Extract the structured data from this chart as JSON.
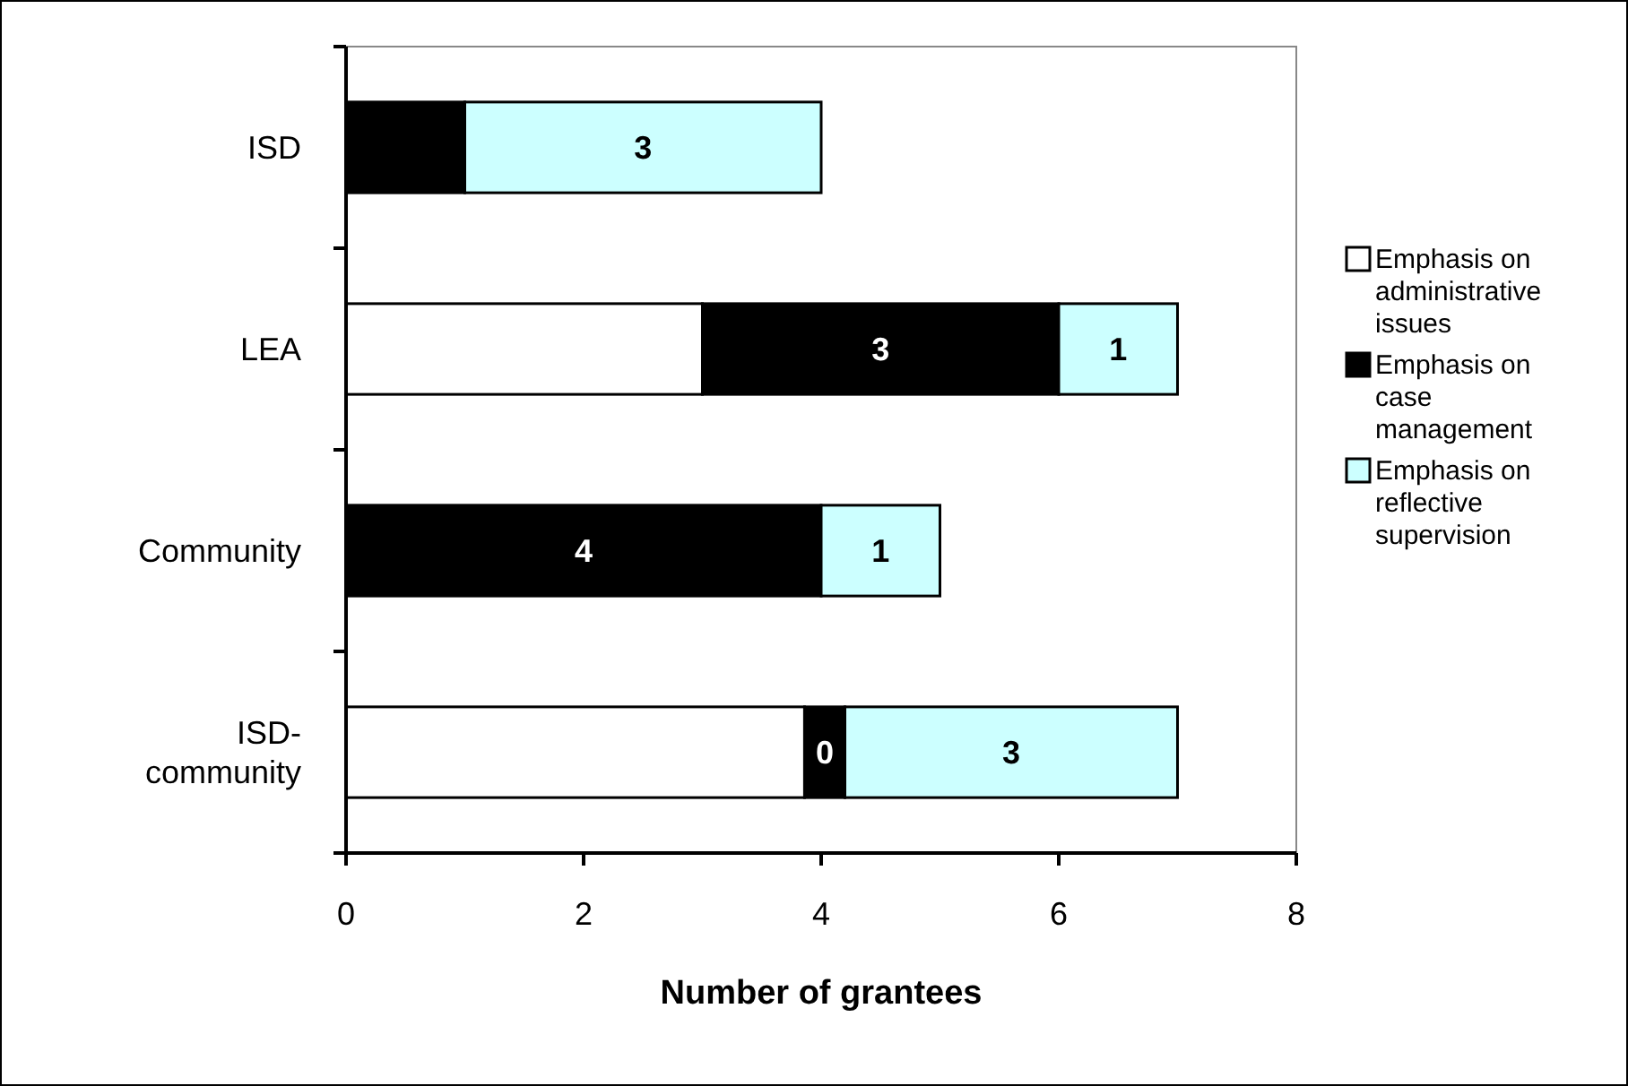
{
  "chart_data": {
    "type": "bar",
    "orientation": "horizontal",
    "stacked": true,
    "xlabel": "Number of grantees",
    "categories": [
      "ISD",
      "LEA",
      "Community",
      "ISD-community"
    ],
    "series": [
      {
        "name": "Emphasis on administrative issues",
        "color": "#ffffff",
        "values": [
          0,
          3,
          0,
          3.86
        ],
        "value_labels": [
          null,
          null,
          null,
          null
        ]
      },
      {
        "name": "Emphasis on case management",
        "color": "#000000",
        "values": [
          1,
          3,
          4,
          0.34
        ],
        "value_labels": [
          null,
          "3",
          "4",
          "0"
        ]
      },
      {
        "name": "Emphasis on reflective supervision",
        "color": "#ccffff",
        "values": [
          3,
          1,
          1,
          2.8
        ],
        "value_labels": [
          "3",
          "1",
          "1",
          "3"
        ]
      }
    ],
    "xlim": [
      0,
      8
    ],
    "xticks": [
      0,
      2,
      4,
      6,
      8
    ],
    "grid": false,
    "legend": "right"
  }
}
